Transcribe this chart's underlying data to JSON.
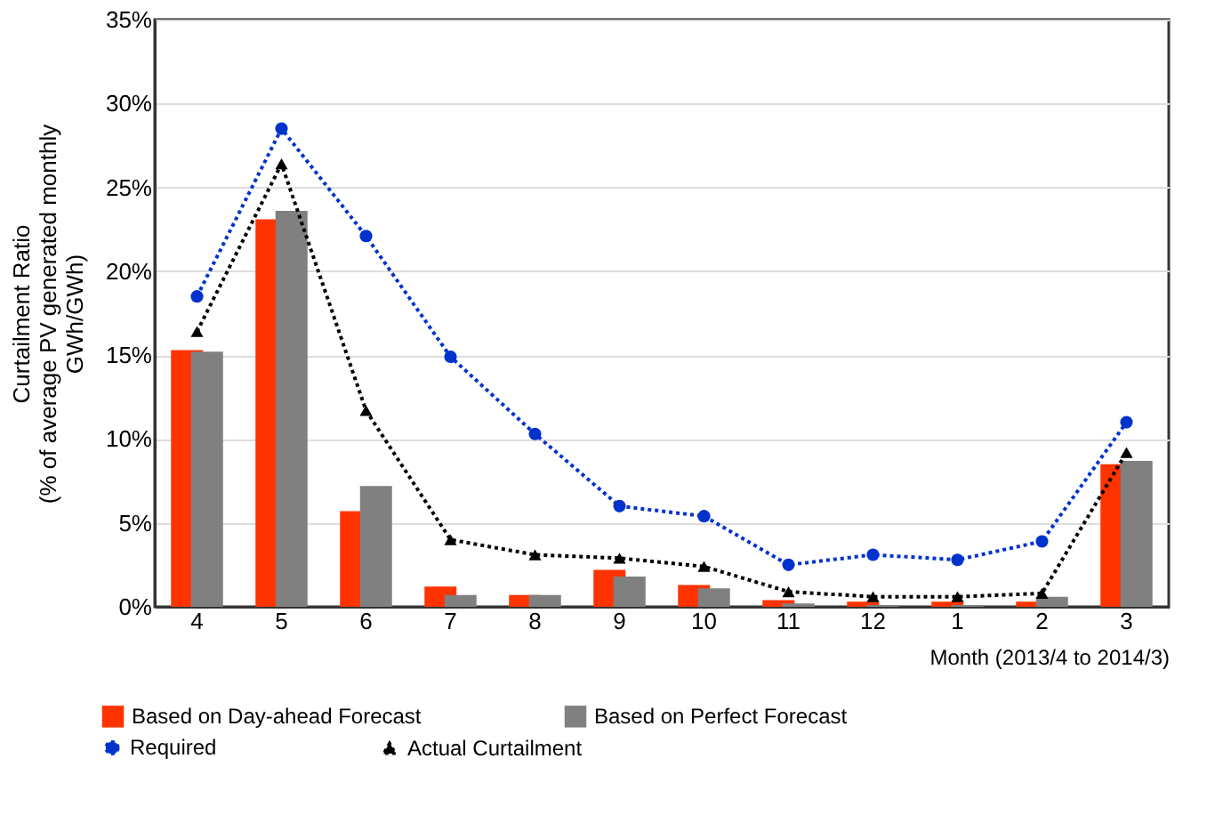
{
  "chart_data": {
    "type": "bar",
    "ylabel": "Curtailment  Ratio\n(% of average PV generated monthly\nGWh/GWh)",
    "xlabel": "Month (2013/4 to 2014/3)",
    "categories": [
      "4",
      "5",
      "6",
      "7",
      "8",
      "9",
      "10",
      "11",
      "12",
      "1",
      "2",
      "3"
    ],
    "series": [
      {
        "name": "Based on Day-ahead Forecast",
        "color": "#ff3300",
        "values": [
          15.3,
          23.1,
          5.7,
          1.2,
          0.7,
          2.2,
          1.3,
          0.4,
          0.3,
          0.3,
          0.3,
          8.5
        ]
      },
      {
        "name": "Based on Perfect Forecast",
        "color": "#808080",
        "values": [
          15.2,
          23.6,
          7.2,
          0.7,
          0.7,
          1.8,
          1.1,
          0.2,
          0.1,
          0.1,
          0.6,
          8.7
        ]
      },
      {
        "name": "Required",
        "type": "line",
        "color": "#0033cc",
        "marker": "circle",
        "line_style": "dotted",
        "values": [
          18.5,
          28.5,
          22.1,
          14.9,
          10.3,
          6.0,
          5.4,
          2.5,
          3.1,
          2.8,
          3.9,
          11.0
        ]
      },
      {
        "name": "Actual Curtailment",
        "type": "line",
        "color": "#000000",
        "marker": "triangle",
        "line_style": "dotted",
        "values": [
          16.4,
          26.4,
          11.7,
          4.0,
          3.1,
          2.9,
          2.4,
          0.9,
          0.6,
          0.6,
          0.8,
          9.2
        ]
      }
    ],
    "ylim": [
      0,
      35
    ],
    "yticks": [
      {
        "value": 0,
        "label": "0%"
      },
      {
        "value": 5,
        "label": "5%"
      },
      {
        "value": 10,
        "label": "10%"
      },
      {
        "value": 15,
        "label": "15%"
      },
      {
        "value": 20,
        "label": "20%"
      },
      {
        "value": 25,
        "label": "25%"
      },
      {
        "value": 30,
        "label": "30%"
      },
      {
        "value": 35,
        "label": "35%"
      }
    ],
    "grid": "y",
    "legend": "bottom"
  }
}
